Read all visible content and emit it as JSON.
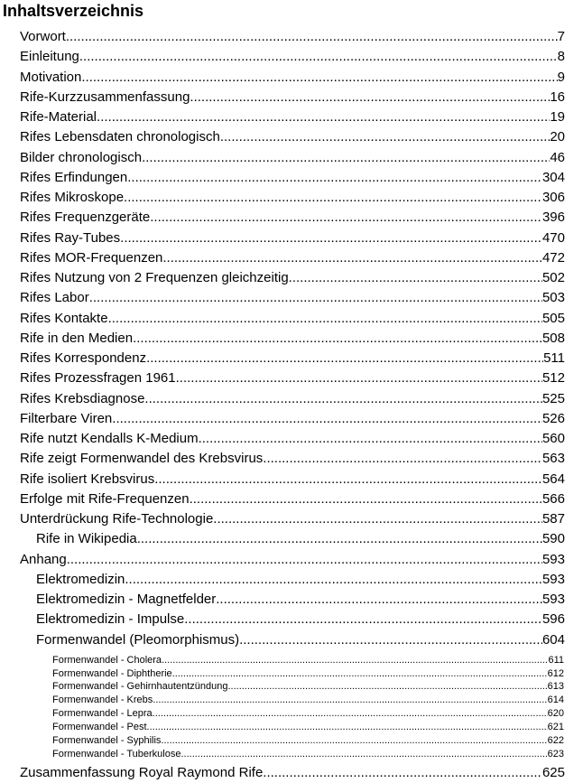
{
  "title": "Inhaltsverzeichnis",
  "entries": [
    {
      "level": 1,
      "label": "Vorwort",
      "page": "7"
    },
    {
      "level": 1,
      "label": "Einleitung",
      "page": "8"
    },
    {
      "level": 1,
      "label": "Motivation",
      "page": "9"
    },
    {
      "level": 1,
      "label": "Rife-Kurzzusammenfassung",
      "page": "16"
    },
    {
      "level": 1,
      "label": "Rife-Material",
      "page": "19"
    },
    {
      "level": 1,
      "label": "Rifes Lebensdaten chronologisch",
      "page": "20"
    },
    {
      "level": 1,
      "label": "Bilder chronologisch",
      "page": "46"
    },
    {
      "level": 1,
      "label": "Rifes Erfindungen",
      "page": "304"
    },
    {
      "level": 1,
      "label": "Rifes Mikroskope",
      "page": "306"
    },
    {
      "level": 1,
      "label": "Rifes Frequenzgeräte",
      "page": "396"
    },
    {
      "level": 1,
      "label": "Rifes Ray-Tubes",
      "page": "470"
    },
    {
      "level": 1,
      "label": "Rifes MOR-Frequenzen",
      "page": "472"
    },
    {
      "level": 1,
      "label": "Rifes Nutzung von 2 Frequenzen gleichzeitig",
      "page": "502"
    },
    {
      "level": 1,
      "label": "Rifes Labor",
      "page": "503"
    },
    {
      "level": 1,
      "label": "Rifes Kontakte",
      "page": "505"
    },
    {
      "level": 1,
      "label": "Rife in den Medien",
      "page": "508"
    },
    {
      "level": 1,
      "label": "Rifes Korrespondenz",
      "page": "511"
    },
    {
      "level": 1,
      "label": "Rifes Prozessfragen 1961",
      "page": "512"
    },
    {
      "level": 1,
      "label": "Rifes Krebsdiagnose",
      "page": "525"
    },
    {
      "level": 1,
      "label": "Filterbare Viren",
      "page": "526"
    },
    {
      "level": 1,
      "label": "Rife nutzt Kendalls K-Medium",
      "page": "560"
    },
    {
      "level": 1,
      "label": "Rife zeigt Formenwandel des Krebsvirus",
      "page": "563"
    },
    {
      "level": 1,
      "label": "Rife isoliert Krebsvirus",
      "page": "564"
    },
    {
      "level": 1,
      "label": "Erfolge mit Rife-Frequenzen",
      "page": "566"
    },
    {
      "level": 1,
      "label": "Unterdrückung Rife-Technologie",
      "page": "587"
    },
    {
      "level": 2,
      "label": "Rife in Wikipedia",
      "page": "590"
    },
    {
      "level": 1,
      "label": "Anhang",
      "page": "593"
    },
    {
      "level": 2,
      "label": "Elektromedizin",
      "page": "593"
    },
    {
      "level": 2,
      "label": "Elektromedizin - Magnetfelder",
      "page": "593"
    },
    {
      "level": 2,
      "label": "Elektromedizin - Impulse",
      "page": "596"
    },
    {
      "level": 2,
      "label": "Formenwandel (Pleomorphismus)",
      "page": "604"
    },
    {
      "level": 3,
      "label": "Formenwandel - Cholera",
      "page": "611"
    },
    {
      "level": 3,
      "label": "Formenwandel - Diphtherie",
      "page": "612"
    },
    {
      "level": 3,
      "label": "Formenwandel - Gehirnhautentzündung",
      "page": "613"
    },
    {
      "level": 3,
      "label": "Formenwandel - Krebs",
      "page": "614"
    },
    {
      "level": 3,
      "label": "Formenwandel - Lepra",
      "page": "620"
    },
    {
      "level": 3,
      "label": "Formenwandel - Pest",
      "page": "621"
    },
    {
      "level": 3,
      "label": "Formenwandel - Syphilis",
      "page": "622"
    },
    {
      "level": 3,
      "label": "Formenwandel - Tuberkulose",
      "page": "623"
    },
    {
      "level": 1,
      "label": "Zusammenfassung Royal Raymond Rife",
      "page": "625"
    }
  ]
}
